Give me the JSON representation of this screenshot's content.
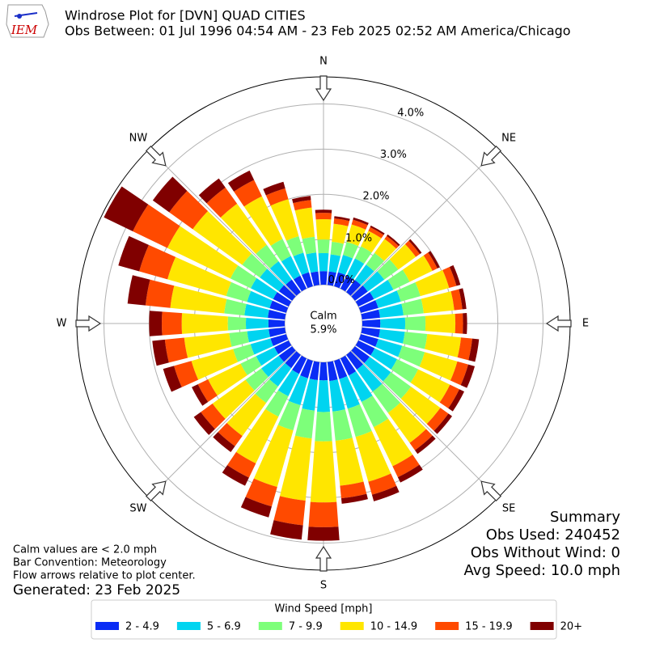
{
  "logo": {
    "text": "IEM"
  },
  "chart_data": {
    "type": "windrose",
    "title": "Windrose Plot for [DVN] QUAD CITIES",
    "subtitle": "Obs Between: 01 Jul 1996 04:54 AM - 23 Feb 2025 02:52 AM America/Chicago",
    "x": [
      0,
      10,
      20,
      30,
      40,
      50,
      60,
      70,
      80,
      90,
      100,
      110,
      120,
      130,
      140,
      150,
      160,
      170,
      180,
      190,
      200,
      210,
      220,
      230,
      240,
      250,
      260,
      270,
      280,
      290,
      300,
      310,
      320,
      330,
      340,
      350
    ],
    "xticks": [
      {
        "value": 0,
        "label": "N"
      },
      {
        "value": 45,
        "label": "NE"
      },
      {
        "value": 90,
        "label": "E"
      },
      {
        "value": 135,
        "label": "SE"
      },
      {
        "value": 180,
        "label": "S"
      },
      {
        "value": 225,
        "label": "SW"
      },
      {
        "value": 270,
        "label": "W"
      },
      {
        "value": 315,
        "label": "NW"
      }
    ],
    "ylim": [
      0,
      4.6
    ],
    "yticks": [
      {
        "value": 0,
        "label": "0.0%"
      },
      {
        "value": 1,
        "label": "1.0%"
      },
      {
        "value": 2,
        "label": "2.0%"
      },
      {
        "value": 3,
        "label": "3.0%"
      },
      {
        "value": 4,
        "label": "4.0%"
      }
    ],
    "grid": true,
    "calm_label": "Calm",
    "calm_value": 5.9,
    "calm_value_label": "5.9%",
    "legend_title": "Wind Speed [mph]",
    "series": [
      {
        "name": "2 - 4.9",
        "color": "#0a2cf5",
        "values": [
          0.3,
          0.3,
          0.32,
          0.32,
          0.33,
          0.35,
          0.38,
          0.4,
          0.4,
          0.4,
          0.4,
          0.4,
          0.4,
          0.4,
          0.4,
          0.42,
          0.42,
          0.42,
          0.4,
          0.4,
          0.4,
          0.38,
          0.36,
          0.36,
          0.35,
          0.36,
          0.36,
          0.36,
          0.38,
          0.38,
          0.38,
          0.36,
          0.34,
          0.32,
          0.32,
          0.3
        ]
      },
      {
        "name": "5 - 6.9",
        "color": "#00d4f0",
        "values": [
          0.4,
          0.38,
          0.4,
          0.42,
          0.42,
          0.45,
          0.48,
          0.52,
          0.52,
          0.55,
          0.55,
          0.55,
          0.55,
          0.58,
          0.6,
          0.65,
          0.68,
          0.68,
          0.7,
          0.68,
          0.62,
          0.55,
          0.5,
          0.48,
          0.45,
          0.46,
          0.48,
          0.5,
          0.52,
          0.52,
          0.55,
          0.52,
          0.5,
          0.48,
          0.45,
          0.42
        ]
      },
      {
        "name": "7 - 9.9",
        "color": "#7dff7a",
        "values": [
          0.3,
          0.28,
          0.3,
          0.3,
          0.32,
          0.38,
          0.4,
          0.45,
          0.45,
          0.45,
          0.5,
          0.52,
          0.52,
          0.55,
          0.58,
          0.62,
          0.65,
          0.65,
          0.65,
          0.62,
          0.58,
          0.5,
          0.45,
          0.43,
          0.38,
          0.4,
          0.4,
          0.4,
          0.45,
          0.48,
          0.5,
          0.48,
          0.45,
          0.42,
          0.38,
          0.35
        ]
      },
      {
        "name": "10 - 14.9",
        "color": "#ffe600",
        "values": [
          0.45,
          0.4,
          0.4,
          0.38,
          0.38,
          0.48,
          0.56,
          0.66,
          0.68,
          0.66,
          0.75,
          0.75,
          0.78,
          0.8,
          0.82,
          0.96,
          1.03,
          1.0,
          1.35,
          1.38,
          1.3,
          1.15,
          0.9,
          0.9,
          0.8,
          0.96,
          1.0,
          1.02,
          1.2,
          1.35,
          1.55,
          1.35,
          1.12,
          1.05,
          0.85,
          0.65
        ]
      },
      {
        "name": "15 - 19.9",
        "color": "#ff4a00",
        "values": [
          0.14,
          0.12,
          0.11,
          0.09,
          0.08,
          0.11,
          0.12,
          0.17,
          0.18,
          0.17,
          0.25,
          0.25,
          0.23,
          0.22,
          0.2,
          0.27,
          0.3,
          0.28,
          0.55,
          0.55,
          0.45,
          0.35,
          0.28,
          0.32,
          0.25,
          0.4,
          0.43,
          0.44,
          0.55,
          0.65,
          0.85,
          0.64,
          0.44,
          0.4,
          0.25,
          0.17
        ]
      },
      {
        "name": "20+",
        "color": "#800000",
        "values": [
          0.07,
          0.05,
          0.05,
          0.04,
          0.04,
          0.05,
          0.06,
          0.09,
          0.09,
          0.09,
          0.15,
          0.15,
          0.12,
          0.1,
          0.1,
          0.13,
          0.15,
          0.12,
          0.3,
          0.32,
          0.25,
          0.2,
          0.16,
          0.19,
          0.15,
          0.25,
          0.28,
          0.28,
          0.4,
          0.48,
          0.71,
          0.45,
          0.25,
          0.23,
          0.15,
          0.09
        ]
      }
    ],
    "summary": [
      "Summary",
      "Obs Used: 240452",
      "Obs Without Wind: 0",
      "Avg Speed: 10.0 mph"
    ],
    "notes": [
      "Calm values are < 2.0 mph",
      "Bar Convention: Meteorology",
      "Flow arrows relative to plot center."
    ],
    "generated": "Generated: 23 Feb 2025"
  }
}
